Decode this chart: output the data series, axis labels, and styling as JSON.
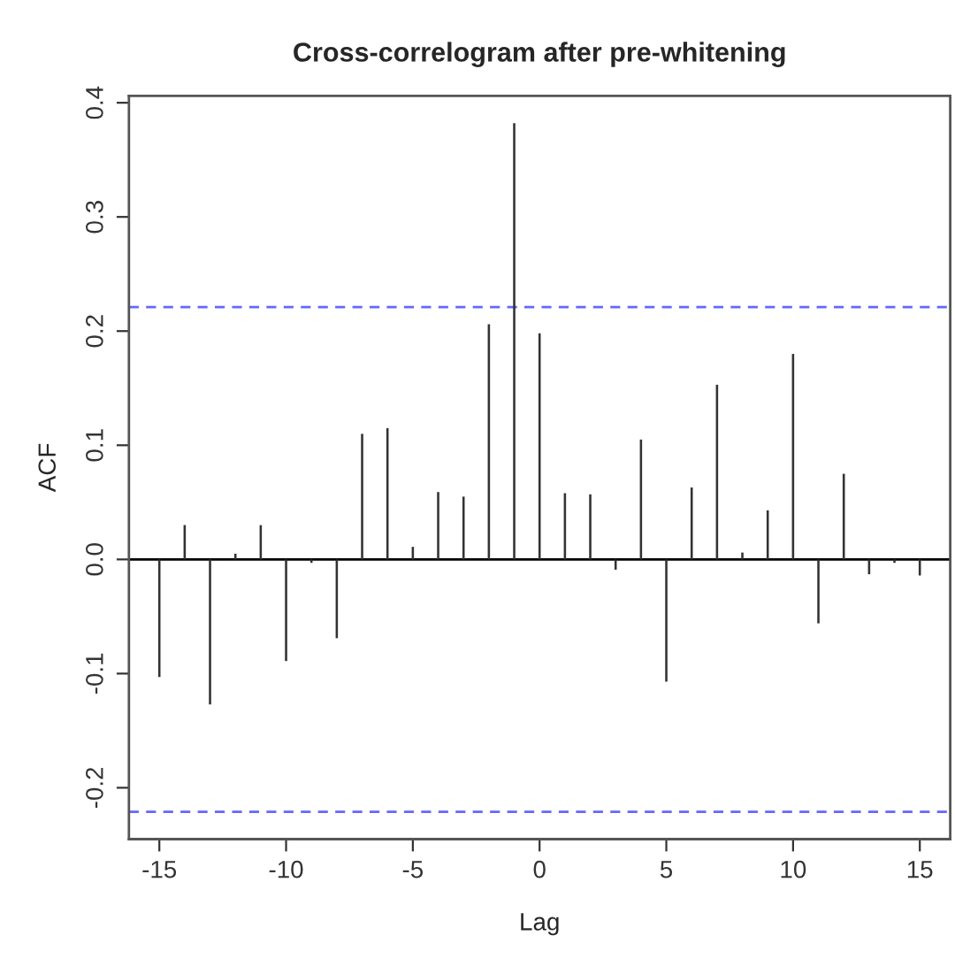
{
  "chart_data": {
    "type": "bar",
    "title": "Cross-correlogram after pre-whitening",
    "xlabel": "Lag",
    "ylabel": "ACF",
    "x": [
      -15,
      -14,
      -13,
      -12,
      -11,
      -10,
      -9,
      -8,
      -7,
      -6,
      -5,
      -4,
      -3,
      -2,
      -1,
      0,
      1,
      2,
      3,
      4,
      5,
      6,
      7,
      8,
      9,
      10,
      11,
      12,
      13,
      14,
      15
    ],
    "values": [
      -0.103,
      0.03,
      -0.127,
      0.005,
      0.03,
      -0.089,
      -0.003,
      -0.069,
      0.11,
      0.115,
      0.011,
      0.059,
      0.055,
      0.206,
      0.382,
      0.198,
      0.058,
      0.057,
      -0.009,
      0.105,
      -0.107,
      0.063,
      0.153,
      0.006,
      0.043,
      0.18,
      -0.056,
      0.075,
      -0.013,
      -0.003,
      -0.014
    ],
    "color": "#333333",
    "xlim": [
      -16.2,
      16.2
    ],
    "xticks": [
      {
        "value": -15,
        "label": "-15"
      },
      {
        "value": -10,
        "label": "-10"
      },
      {
        "value": -5,
        "label": "-5"
      },
      0,
      5,
      10,
      15
    ],
    "ylim": [
      -0.245,
      0.406
    ],
    "yticks": [
      {
        "value": -0.2,
        "label": "-0.2"
      },
      {
        "value": -0.1,
        "label": "-0.1"
      },
      {
        "value": 0.0,
        "label": "0.0"
      },
      0.1,
      0.2,
      0.3,
      0.4
    ],
    "ref_lines": [
      {
        "axis": "y",
        "value": 0,
        "color": "#000000",
        "line_style": "solid"
      },
      {
        "axis": "y",
        "value": 0.221,
        "color": "#6666ff",
        "line_style": "dashed"
      },
      {
        "axis": "y",
        "value": -0.221,
        "color": "#6666ff",
        "line_style": "dashed"
      }
    ],
    "grid": false,
    "legend": false
  }
}
